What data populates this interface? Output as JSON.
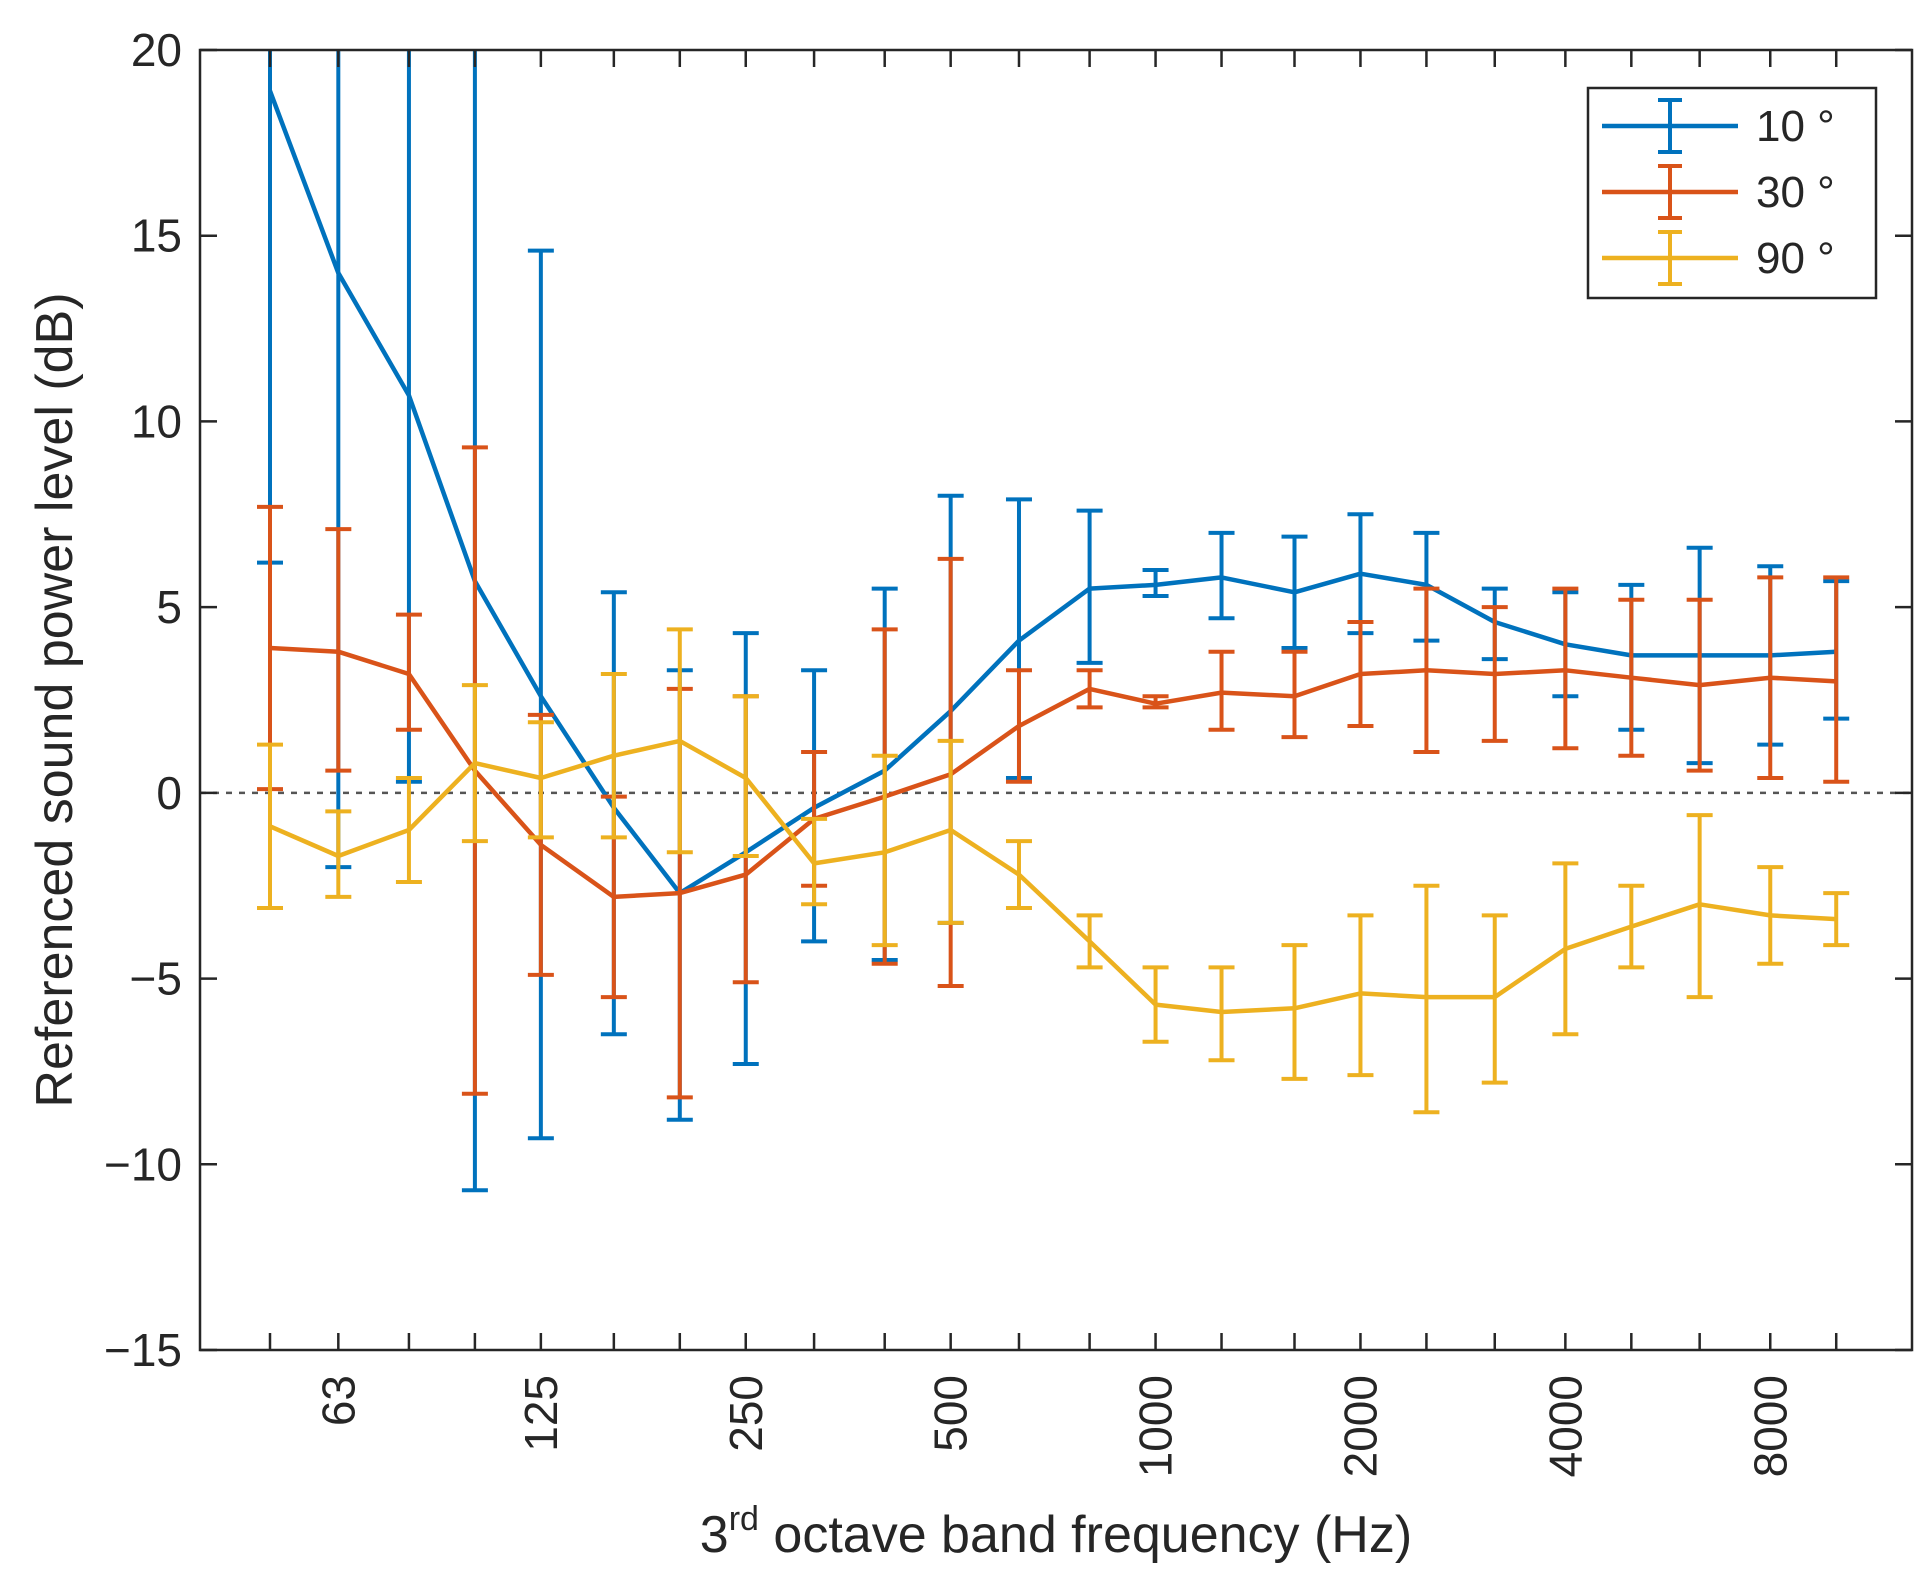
{
  "chart_data": {
    "type": "line",
    "subtype": "errorbar",
    "title": "",
    "xlabel": {
      "prefix": "3",
      "superscript": "rd",
      "suffix": " octave band frequency (Hz)"
    },
    "ylabel": "Referenced sound power level (dB)",
    "ylim": [
      -15,
      20
    ],
    "yticks": [
      -15,
      -10,
      -5,
      0,
      5,
      10,
      15,
      20
    ],
    "ytick_labels": [
      "−15",
      "−10",
      "−5",
      "0",
      "5",
      "10",
      "15",
      "20"
    ],
    "x": [
      50,
      63,
      80,
      100,
      125,
      160,
      200,
      250,
      315,
      400,
      500,
      630,
      800,
      1000,
      1250,
      1600,
      2000,
      2500,
      3150,
      4000,
      5000,
      6300,
      8000,
      10000
    ],
    "xticks": [
      63,
      125,
      250,
      500,
      1000,
      2000,
      4000,
      8000
    ],
    "xtick_labels": [
      "63",
      "125",
      "250",
      "500",
      "1000",
      "2000",
      "4000",
      "8000"
    ],
    "reference_line": 0,
    "grid": false,
    "legend_position": "top-right",
    "colors": {
      "axis": "#262626",
      "ref_line": "#555555"
    },
    "series": [
      {
        "name": "10 °",
        "color": "#0072BD",
        "values": [
          18.9,
          14.0,
          10.7,
          5.7,
          2.6,
          -0.4,
          -2.7,
          -1.6,
          -0.4,
          0.6,
          2.2,
          4.1,
          5.5,
          5.6,
          5.8,
          5.4,
          5.9,
          5.6,
          4.6,
          4.0,
          3.7,
          3.7,
          3.7,
          3.8
        ],
        "lower": [
          6.2,
          -2.0,
          0.3,
          -10.7,
          -9.3,
          -6.5,
          -8.8,
          -7.3,
          -4.0,
          -4.5,
          -3.5,
          0.4,
          3.5,
          5.3,
          4.7,
          3.9,
          4.3,
          4.1,
          3.6,
          2.6,
          1.7,
          0.8,
          1.3,
          2.0
        ],
        "upper": [
          20.0,
          20.0,
          20.0,
          20.0,
          14.6,
          5.4,
          3.3,
          4.3,
          3.3,
          5.5,
          8.0,
          7.9,
          7.6,
          6.0,
          7.0,
          6.9,
          7.5,
          7.0,
          5.5,
          5.4,
          5.6,
          6.6,
          6.1,
          5.7
        ]
      },
      {
        "name": "30 °",
        "color": "#D95319",
        "values": [
          3.9,
          3.8,
          3.2,
          0.6,
          -1.4,
          -2.8,
          -2.7,
          -2.2,
          -0.7,
          -0.1,
          0.5,
          1.8,
          2.8,
          2.4,
          2.7,
          2.6,
          3.2,
          3.3,
          3.2,
          3.3,
          3.1,
          2.9,
          3.1,
          3.0
        ],
        "lower": [
          0.1,
          0.6,
          1.7,
          -8.1,
          -4.9,
          -5.5,
          -8.2,
          -5.1,
          -2.5,
          -4.6,
          -5.2,
          0.3,
          2.3,
          2.3,
          1.7,
          1.5,
          1.8,
          1.1,
          1.4,
          1.2,
          1.0,
          0.6,
          0.4,
          0.3
        ],
        "upper": [
          7.7,
          7.1,
          4.8,
          9.3,
          2.1,
          -0.1,
          2.8,
          2.6,
          1.1,
          4.4,
          6.3,
          3.3,
          3.3,
          2.6,
          3.8,
          3.8,
          4.6,
          5.5,
          5.0,
          5.5,
          5.2,
          5.2,
          5.8,
          5.8
        ]
      },
      {
        "name": "90 °",
        "color": "#EDB120",
        "values": [
          -0.9,
          -1.7,
          -1.0,
          0.8,
          0.4,
          1.0,
          1.4,
          0.4,
          -1.9,
          -1.6,
          -1.0,
          -2.2,
          -4.0,
          -5.7,
          -5.9,
          -5.8,
          -5.4,
          -5.5,
          -5.5,
          -4.2,
          -3.6,
          -3.0,
          -3.3,
          -3.4
        ],
        "lower": [
          -3.1,
          -2.8,
          -2.4,
          -1.3,
          -1.2,
          -1.2,
          -1.6,
          -1.7,
          -3.0,
          -4.1,
          -3.5,
          -3.1,
          -4.7,
          -6.7,
          -7.2,
          -7.7,
          -7.6,
          -8.6,
          -7.8,
          -6.5,
          -4.7,
          -5.5,
          -4.6,
          -4.1
        ],
        "upper": [
          1.3,
          -0.5,
          0.4,
          2.9,
          1.9,
          3.2,
          4.4,
          2.6,
          -0.7,
          1.0,
          1.4,
          -1.3,
          -3.3,
          -4.7,
          -4.7,
          -4.1,
          -3.3,
          -2.5,
          -3.3,
          -1.9,
          -2.5,
          -0.6,
          -2.0,
          -2.7
        ]
      }
    ]
  }
}
